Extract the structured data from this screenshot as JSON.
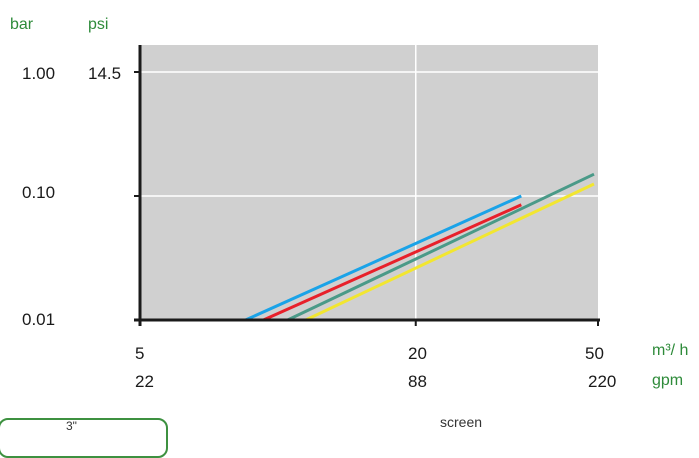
{
  "chart_data": {
    "type": "line",
    "scale": "log-log",
    "y_unit_labels": [
      "bar",
      "psi"
    ],
    "y_ticks": [
      {
        "bar": "1.00",
        "psi": "14.5",
        "value": 1.0
      },
      {
        "bar": "0.10",
        "psi": "",
        "value": 0.1
      },
      {
        "bar": "0.01",
        "psi": "",
        "value": 0.01
      }
    ],
    "x_unit_labels": {
      "primary": "m³/ h",
      "secondary": "gpm"
    },
    "x_ticks": [
      {
        "primary": "5",
        "secondary": "22",
        "value": 5
      },
      {
        "primary": "20",
        "secondary": "88",
        "value": 20
      },
      {
        "primary": "50",
        "secondary": "220",
        "value": 50
      }
    ],
    "xlim": [
      5,
      50
    ],
    "ylim": [
      0.01,
      1.0
    ],
    "grid": true,
    "plot_background": "#d0d0d0",
    "series": [
      {
        "color": "#1aa3e8",
        "points": [
          [
            8.5,
            0.01
          ],
          [
            34,
            0.1
          ]
        ]
      },
      {
        "color": "#e8202a",
        "points": [
          [
            9.3,
            0.01
          ],
          [
            34,
            0.085
          ]
        ]
      },
      {
        "color": "#4a9a88",
        "points": [
          [
            10.5,
            0.01
          ],
          [
            49,
            0.15
          ]
        ]
      },
      {
        "color": "#f2e630",
        "points": [
          [
            11.5,
            0.01
          ],
          [
            49,
            0.125
          ]
        ]
      }
    ]
  },
  "fragments": {
    "box_text": "3\"",
    "screen_label": "screen"
  },
  "colors": {
    "axis_unit_green": "#2e8b3a",
    "axis": "#1a1a1a"
  }
}
